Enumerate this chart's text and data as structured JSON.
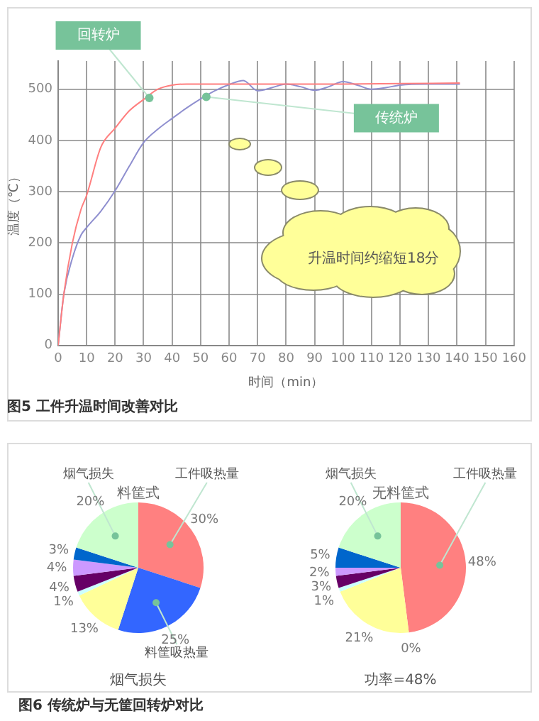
{
  "chart_data": [
    {
      "type": "line",
      "title": "图5 工件升温时间改善对比",
      "xlabel": "时间（min）",
      "ylabel": "温度（℃）",
      "xlim": [
        0,
        160
      ],
      "xticks": [
        0,
        10,
        20,
        30,
        40,
        50,
        60,
        70,
        80,
        90,
        100,
        110,
        120,
        130,
        140,
        150,
        160
      ],
      "ylim": [
        0,
        555
      ],
      "yticks": [
        0,
        100,
        200,
        300,
        400,
        500
      ],
      "grid": true,
      "marker": "none",
      "series": [
        {
          "color": "#ff7f7f",
          "x": [
            0,
            2,
            5,
            8,
            10,
            15,
            20,
            25,
            30,
            35,
            40,
            45,
            50,
            60,
            80,
            100,
            120,
            141
          ],
          "values": [
            0,
            100,
            200,
            265,
            293,
            387,
            424,
            458,
            480,
            500,
            508,
            510,
            510,
            510,
            510,
            510,
            511,
            512
          ]
        },
        {
          "color": "#8f8fcf",
          "x": [
            0,
            2,
            5,
            8,
            10,
            15,
            20,
            25,
            30,
            35,
            40,
            45,
            50,
            55,
            60,
            65,
            70,
            75,
            80,
            85,
            90,
            95,
            100,
            105,
            110,
            115,
            120,
            130,
            141
          ],
          "values": [
            0,
            100,
            170,
            215,
            230,
            262,
            302,
            350,
            396,
            422,
            443,
            463,
            481,
            497,
            509,
            517,
            497,
            503,
            510,
            505,
            498,
            505,
            515,
            508,
            500,
            503,
            508,
            510,
            510
          ]
        }
      ],
      "annotations": [
        {
          "text": "回转炉",
          "x": 32,
          "y": 483
        },
        {
          "text": "传统炉",
          "x": 52,
          "y": 485
        },
        "升温时间约缩短18分"
      ]
    },
    {
      "type": "pie",
      "title": "料筐式",
      "categories": [
        "工件吸热量",
        "料筐吸热量",
        null,
        null,
        null,
        null,
        null,
        "烟气损失"
      ],
      "values": [
        30,
        25,
        13,
        1,
        4,
        4,
        3,
        20
      ],
      "colors": [
        "#ff8080",
        "#3366ff",
        "#ffff99",
        "#ccffff",
        "#660066",
        "#cc99ff",
        "#0066cc",
        "#ccffcc"
      ],
      "value_labels": [
        "30%",
        "25%",
        "13%",
        "1%",
        "4%",
        "4%",
        "3%",
        "20%"
      ],
      "annotations": [
        "烟气损失",
        "图6 传统炉与无筐回转炉对比"
      ]
    },
    {
      "type": "pie",
      "title": "无料筐式",
      "categories": [
        "工件吸热量",
        null,
        null,
        null,
        null,
        null,
        null,
        "烟气损失"
      ],
      "values": [
        48,
        0,
        21,
        1,
        3,
        2,
        5,
        20
      ],
      "colors": [
        "#ff8080",
        "#3366ff",
        "#ffff99",
        "#ccffff",
        "#660066",
        "#cc99ff",
        "#0066cc",
        "#ccffcc"
      ],
      "value_labels": [
        "48%",
        "0%",
        "21%",
        "1%",
        "3%",
        "2%",
        "5%",
        "20%"
      ],
      "annotations": [
        "功率=48%"
      ]
    }
  ]
}
